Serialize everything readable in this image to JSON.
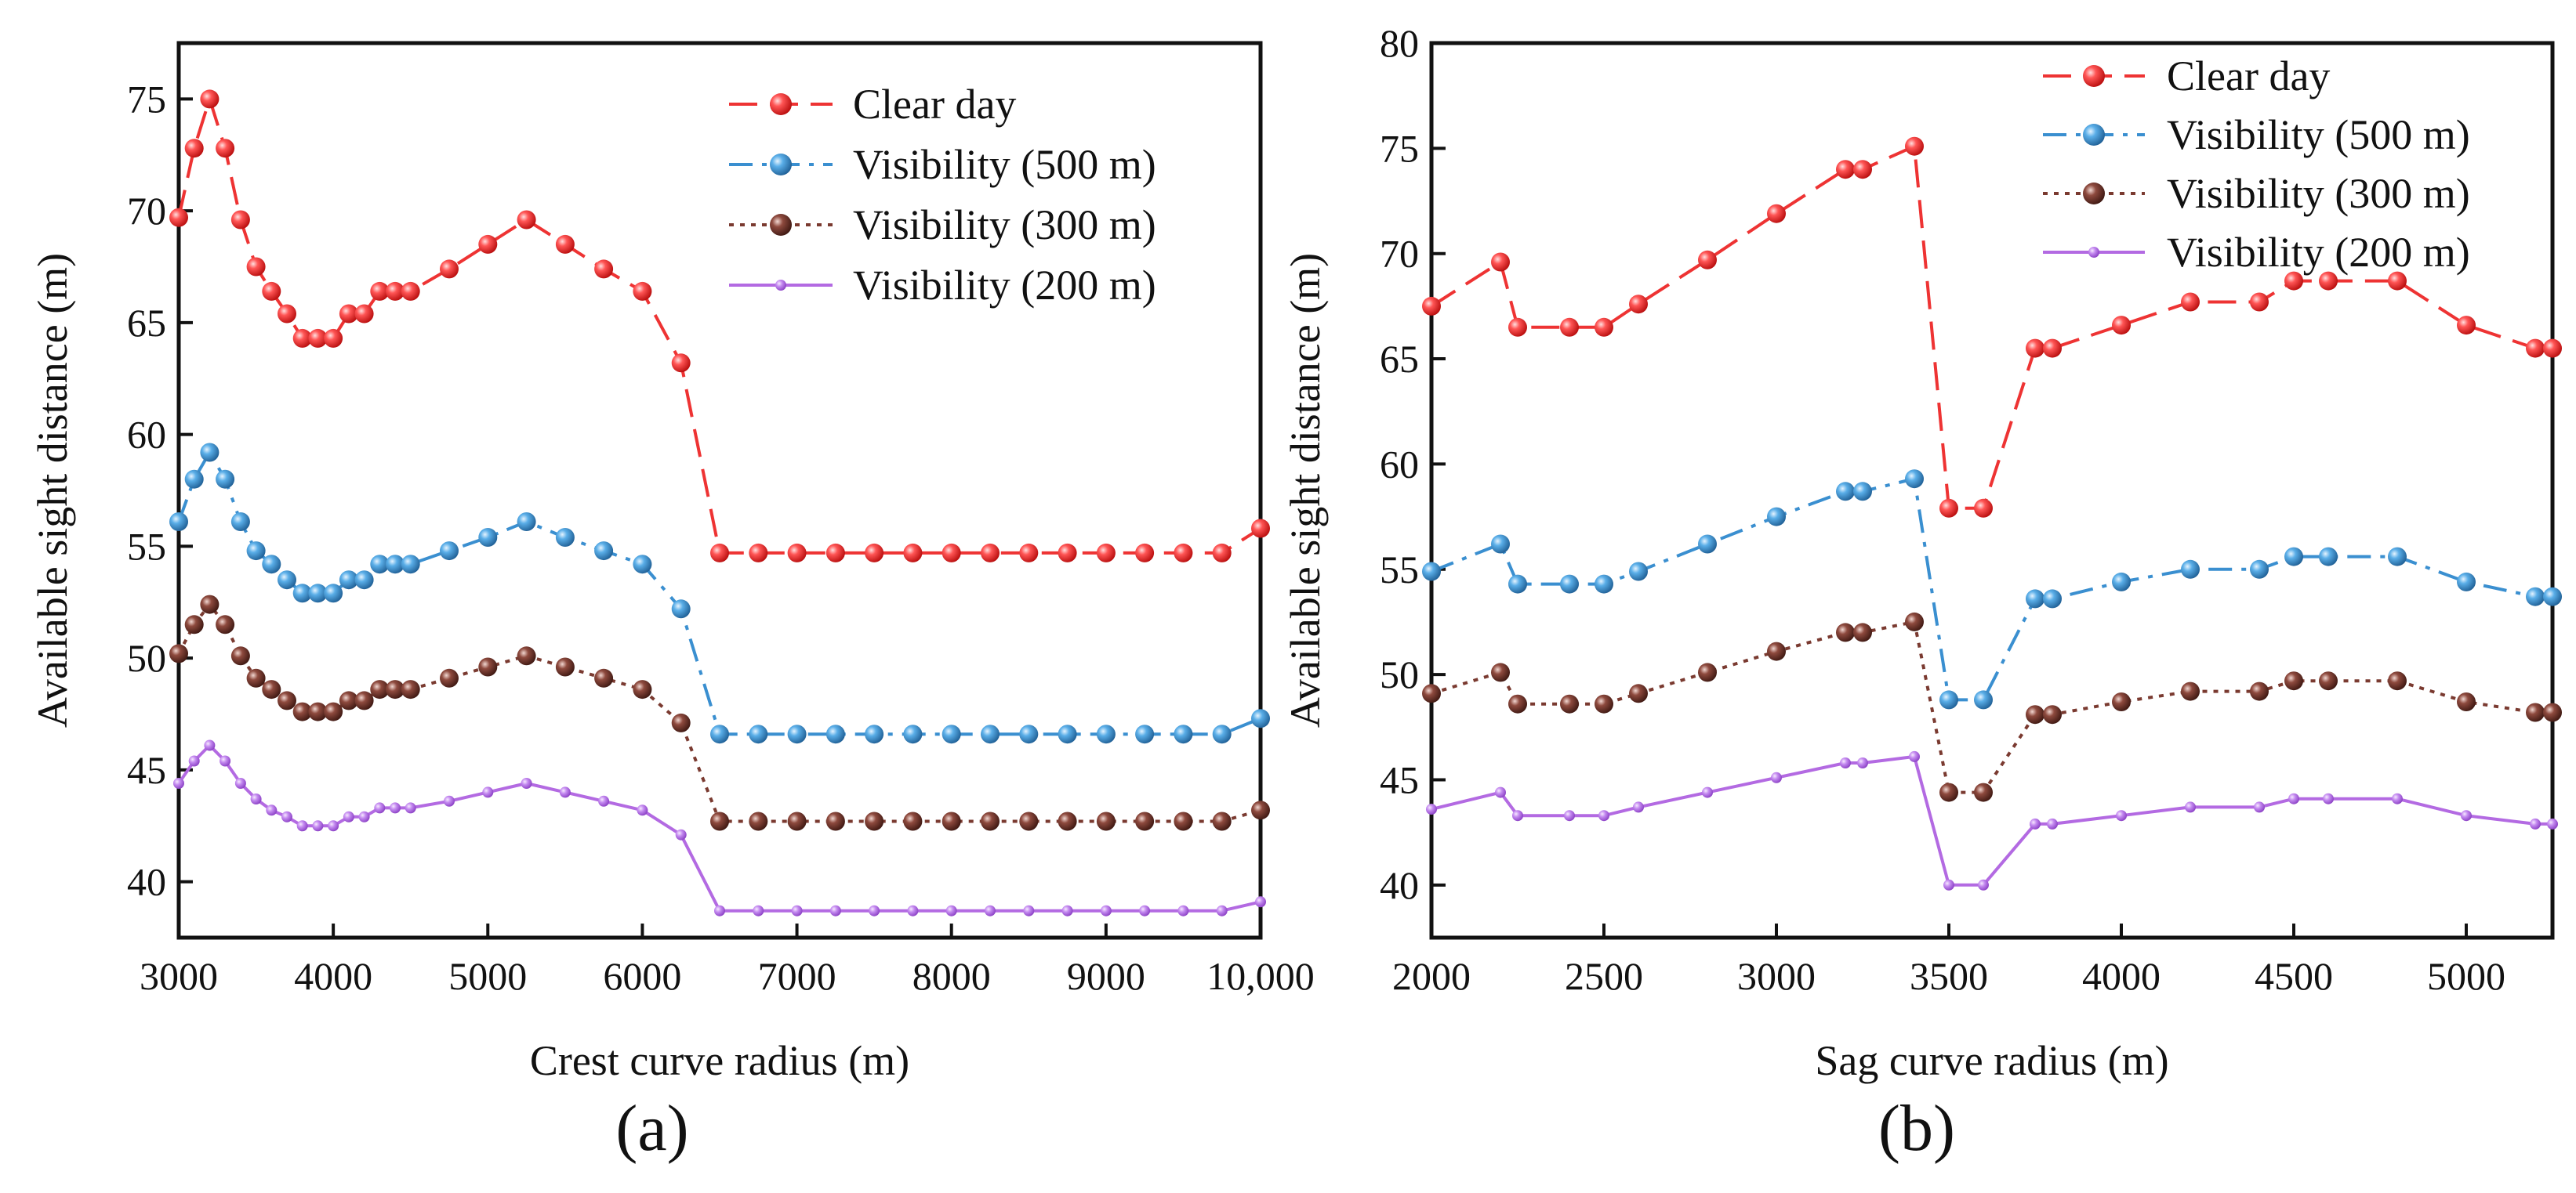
{
  "chart_data": [
    {
      "type": "line",
      "panel_label": "(a)",
      "title": "",
      "xlabel": "Crest curve radius (m)",
      "ylabel": "Available sight distance (m)",
      "xlim": [
        3000,
        10000
      ],
      "ylim": [
        37.5,
        77.5
      ],
      "xticks": [
        3000,
        4000,
        5000,
        6000,
        7000,
        8000,
        9000,
        10000
      ],
      "xtick_labels": [
        "3000",
        "4000",
        "5000",
        "6000",
        "7000",
        "8000",
        "9000",
        "10,000"
      ],
      "yticks": [
        40,
        45,
        50,
        55,
        60,
        65,
        70,
        75
      ],
      "ytick_labels": [
        "40",
        "45",
        "50",
        "55",
        "60",
        "65",
        "70",
        "75"
      ],
      "legend_position": "top-right",
      "x": [
        3000,
        3100,
        3200,
        3300,
        3400,
        3500,
        3600,
        3700,
        3800,
        3900,
        4000,
        4100,
        4200,
        4300,
        4400,
        4500,
        4750,
        5000,
        5250,
        5500,
        5750,
        6000,
        6250,
        6500,
        6750,
        7000,
        7250,
        7500,
        7750,
        8000,
        8250,
        8500,
        8750,
        9000,
        9250,
        9500,
        9750,
        10000
      ],
      "series": [
        {
          "name": "Clear day",
          "color": "#ee3333",
          "line": "dash",
          "marker": "ball",
          "values": [
            69.7,
            72.8,
            75.0,
            72.8,
            69.6,
            67.5,
            66.4,
            65.4,
            64.3,
            64.3,
            64.3,
            65.4,
            65.4,
            66.4,
            66.4,
            66.4,
            67.4,
            68.5,
            69.6,
            68.5,
            67.4,
            66.4,
            63.2,
            54.7,
            54.7,
            54.7,
            54.7,
            54.7,
            54.7,
            54.7,
            54.7,
            54.7,
            54.7,
            54.7,
            54.7,
            54.7,
            54.7,
            55.8
          ]
        },
        {
          "name": "Visibility (500 m)",
          "color": "#3a8fd0",
          "line": "dashdot",
          "marker": "ball",
          "values": [
            56.1,
            58.0,
            59.2,
            58.0,
            56.1,
            54.8,
            54.2,
            53.5,
            52.9,
            52.9,
            52.9,
            53.5,
            53.5,
            54.2,
            54.2,
            54.2,
            54.8,
            55.4,
            56.1,
            55.4,
            54.8,
            54.2,
            52.2,
            46.6,
            46.6,
            46.6,
            46.6,
            46.6,
            46.6,
            46.6,
            46.6,
            46.6,
            46.6,
            46.6,
            46.6,
            46.6,
            46.6,
            47.3
          ]
        },
        {
          "name": "Visibility (300 m)",
          "color": "#7a3a30",
          "line": "dot",
          "marker": "ball",
          "values": [
            50.2,
            51.5,
            52.4,
            51.5,
            50.1,
            49.1,
            48.6,
            48.1,
            47.6,
            47.6,
            47.6,
            48.1,
            48.1,
            48.6,
            48.6,
            48.6,
            49.1,
            49.6,
            50.1,
            49.6,
            49.1,
            48.6,
            47.1,
            42.7,
            42.7,
            42.7,
            42.7,
            42.7,
            42.7,
            42.7,
            42.7,
            42.7,
            42.7,
            42.7,
            42.7,
            42.7,
            42.7,
            43.2
          ]
        },
        {
          "name": "Visibility (200 m)",
          "color": "#b36ae2",
          "line": "solid",
          "marker": "small",
          "values": [
            44.4,
            45.4,
            46.1,
            45.4,
            44.4,
            43.7,
            43.2,
            42.9,
            42.5,
            42.5,
            42.5,
            42.9,
            42.9,
            43.3,
            43.3,
            43.3,
            43.6,
            44.0,
            44.4,
            44.0,
            43.6,
            43.2,
            42.1,
            38.7,
            38.7,
            38.7,
            38.7,
            38.7,
            38.7,
            38.7,
            38.7,
            38.7,
            38.7,
            38.7,
            38.7,
            38.7,
            38.7,
            39.1
          ]
        }
      ]
    },
    {
      "type": "line",
      "panel_label": "(b)",
      "title": "",
      "xlabel": "Sag curve radius (m)",
      "ylabel": "Available sight distance (m)",
      "xlim": [
        2000,
        5250
      ],
      "ylim": [
        37.5,
        80
      ],
      "xticks": [
        2000,
        2500,
        3000,
        3500,
        4000,
        4500,
        5000
      ],
      "xtick_labels": [
        "2000",
        "2500",
        "3000",
        "3500",
        "4000",
        "4500",
        "5000"
      ],
      "yticks": [
        40,
        45,
        50,
        55,
        60,
        65,
        70,
        75,
        80
      ],
      "ytick_labels": [
        "40",
        "45",
        "50",
        "55",
        "60",
        "65",
        "70",
        "75",
        "80"
      ],
      "legend_position": "top-right",
      "x": [
        2000,
        2200,
        2250,
        2400,
        2500,
        2600,
        2800,
        3000,
        3200,
        3250,
        3400,
        3500,
        3600,
        3750,
        3800,
        4000,
        4200,
        4400,
        4500,
        4600,
        4800,
        5000,
        5200,
        5250
      ],
      "series": [
        {
          "name": "Clear day",
          "color": "#ee3333",
          "line": "dash",
          "marker": "ball",
          "values": [
            67.5,
            69.6,
            66.5,
            66.5,
            66.5,
            67.6,
            69.7,
            71.9,
            74.0,
            74.0,
            75.1,
            57.9,
            57.9,
            65.5,
            65.5,
            66.6,
            67.7,
            67.7,
            68.7,
            68.7,
            68.7,
            66.6,
            65.5,
            65.5
          ]
        },
        {
          "name": "Visibility (500 m)",
          "color": "#3a8fd0",
          "line": "dashdot",
          "marker": "ball",
          "values": [
            54.9,
            56.2,
            54.3,
            54.3,
            54.3,
            54.9,
            56.2,
            57.5,
            58.7,
            58.7,
            59.3,
            48.8,
            48.8,
            53.6,
            53.6,
            54.4,
            55.0,
            55.0,
            55.6,
            55.6,
            55.6,
            54.4,
            53.7,
            53.7
          ]
        },
        {
          "name": "Visibility (300 m)",
          "color": "#7a3a30",
          "line": "dot",
          "marker": "ball",
          "values": [
            49.1,
            50.1,
            48.6,
            48.6,
            48.6,
            49.1,
            50.1,
            51.1,
            52.0,
            52.0,
            52.5,
            44.4,
            44.4,
            48.1,
            48.1,
            48.7,
            49.2,
            49.2,
            49.7,
            49.7,
            49.7,
            48.7,
            48.2,
            48.2
          ]
        },
        {
          "name": "Visibility (200 m)",
          "color": "#b36ae2",
          "line": "solid",
          "marker": "small",
          "values": [
            43.6,
            44.4,
            43.3,
            43.3,
            43.3,
            43.7,
            44.4,
            45.1,
            45.8,
            45.8,
            46.1,
            40.0,
            40.0,
            42.9,
            42.9,
            43.3,
            43.7,
            43.7,
            44.1,
            44.1,
            44.1,
            43.3,
            42.9,
            42.9
          ]
        }
      ]
    }
  ]
}
